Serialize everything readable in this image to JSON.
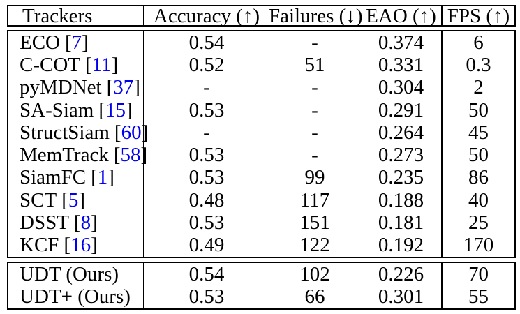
{
  "table": {
    "columns": [
      {
        "key": "tracker",
        "label": "Trackers"
      },
      {
        "key": "accuracy",
        "label": "Accuracy (↑)"
      },
      {
        "key": "failures",
        "label": "Failures (↓)"
      },
      {
        "key": "eao",
        "label": "EAO (↑)"
      },
      {
        "key": "fps",
        "label": "FPS (↑)"
      }
    ],
    "citation_brackets": [
      "[",
      "]"
    ],
    "baseline_rows": [
      {
        "tracker": "ECO",
        "cite": "7",
        "accuracy": "0.54",
        "failures": "-",
        "eao": "0.374",
        "fps": "6"
      },
      {
        "tracker": "C-COT",
        "cite": "11",
        "accuracy": "0.52",
        "failures": "51",
        "eao": "0.331",
        "fps": "0.3"
      },
      {
        "tracker": "pyMDNet",
        "cite": "37",
        "accuracy": "-",
        "failures": "-",
        "eao": "0.304",
        "fps": "2"
      },
      {
        "tracker": "SA-Siam",
        "cite": "15",
        "accuracy": "0.53",
        "failures": "-",
        "eao": "0.291",
        "fps": "50"
      },
      {
        "tracker": "StructSiam",
        "cite": "60",
        "accuracy": "-",
        "failures": "-",
        "eao": "0.264",
        "fps": "45"
      },
      {
        "tracker": "MemTrack",
        "cite": "58",
        "accuracy": "0.53",
        "failures": "-",
        "eao": "0.273",
        "fps": "50"
      },
      {
        "tracker": "SiamFC",
        "cite": "1",
        "accuracy": "0.53",
        "failures": "99",
        "eao": "0.235",
        "fps": "86"
      },
      {
        "tracker": "SCT",
        "cite": "5",
        "accuracy": "0.48",
        "failures": "117",
        "eao": "0.188",
        "fps": "40"
      },
      {
        "tracker": "DSST",
        "cite": "8",
        "accuracy": "0.53",
        "failures": "151",
        "eao": "0.181",
        "fps": "25"
      },
      {
        "tracker": "KCF",
        "cite": "16",
        "accuracy": "0.49",
        "failures": "122",
        "eao": "0.192",
        "fps": "170"
      }
    ],
    "ours_rows": [
      {
        "tracker": "UDT (Ours)",
        "cite": null,
        "accuracy": "0.54",
        "failures": "102",
        "eao": "0.226",
        "fps": "70"
      },
      {
        "tracker": "UDT+ (Ours)",
        "cite": null,
        "accuracy": "0.53",
        "failures": "66",
        "eao": "0.301",
        "fps": "55"
      }
    ],
    "colors": {
      "text": "#000000",
      "citation": "#0000EE",
      "border": "#000000",
      "background": "#ffffff"
    }
  }
}
